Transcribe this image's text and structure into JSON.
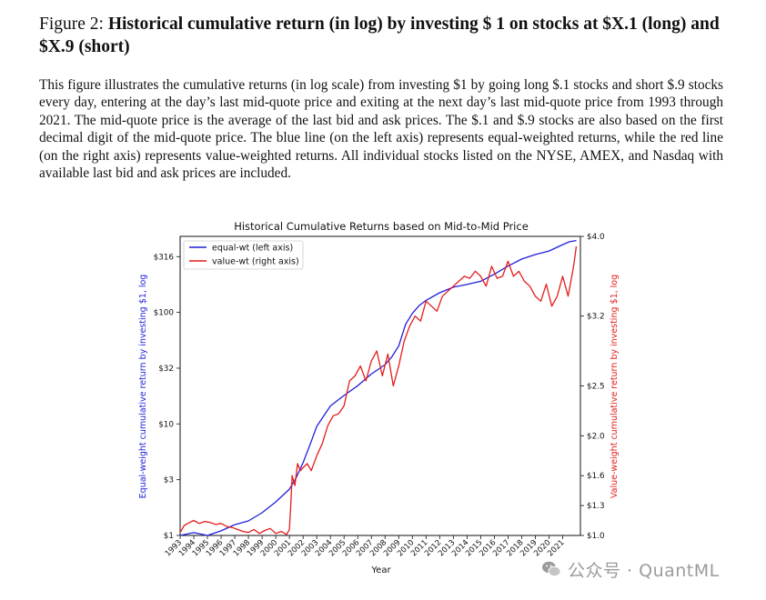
{
  "caption": {
    "label": "Figure 2:",
    "title": "Historical cumulative return (in log) by investing $ 1 on stocks at $X.1 (long) and $X.9 (short)",
    "body": "This figure illustrates the cumulative returns (in log scale) from investing $1 by going long $.1 stocks and short $.9 stocks every day, entering at the day’s last mid-quote price and exiting at the next day’s last mid-quote price from 1993 through 2021. The mid-quote price is the average of the last bid and ask prices. The $.1 and $.9 stocks are also based on the first decimal digit of the mid-quote price. The blue line (on the left axis) represents equal-weighted returns, while the red line (on the right axis) represents value-weighted returns. All individual stocks listed on the NYSE, AMEX, and Nasdaq with available last bid and ask prices are included."
  },
  "watermark": {
    "text": "公众号 · QuantML",
    "icon": "wechat-icon"
  },
  "chart_data": {
    "type": "line",
    "title": "Historical Cumulative Returns based on Mid-to-Mid Price",
    "xlabel": "Year",
    "ylabel_left": "Equal-weight cumulative return by investing $1, log",
    "ylabel_right": "Value-weight cumulative return by investing $1, log",
    "x_range": [
      1993,
      2022.3
    ],
    "x_ticks": [
      "1993",
      "1994",
      "1995",
      "1996",
      "1997",
      "1998",
      "1999",
      "2000",
      "2001",
      "2002",
      "2003",
      "2004",
      "2005",
      "2006",
      "2007",
      "2008",
      "2009",
      "2010",
      "2011",
      "2012",
      "2013",
      "2014",
      "2015",
      "2016",
      "2017",
      "2018",
      "2019",
      "2020",
      "2021"
    ],
    "left_axis": {
      "scale": "log",
      "range": [
        1,
        480
      ],
      "ticks": [
        1,
        3.16,
        10,
        31.6,
        100,
        316
      ],
      "tick_labels": [
        "$1",
        "$3",
        "$10",
        "$32",
        "$100",
        "$316"
      ],
      "color": "#1f1fdc"
    },
    "right_axis": {
      "scale": "linear",
      "range": [
        1.0,
        4.0
      ],
      "ticks": [
        1.0,
        1.3,
        1.6,
        2.0,
        2.5,
        3.2,
        4.0
      ],
      "tick_labels": [
        "$1.0",
        "$1.3",
        "$1.6",
        "$2.0",
        "$2.5",
        "$3.2",
        "$4.0"
      ],
      "color": "#e51c1c"
    },
    "legend": {
      "position": "top-left"
    },
    "grid": false,
    "series": [
      {
        "name": "equal-wt (left axis)",
        "axis": "left",
        "color": "#1f1fdc",
        "x": [
          1993.0,
          1994.0,
          1995.0,
          1996.0,
          1997.0,
          1998.0,
          1999.0,
          2000.0,
          2001.0,
          2001.5,
          2002.0,
          2002.5,
          2003.0,
          2004.0,
          2005.0,
          2006.0,
          2007.0,
          2008.0,
          2008.5,
          2009.0,
          2009.5,
          2010.0,
          2010.5,
          2011.0,
          2012.0,
          2013.0,
          2014.0,
          2015.0,
          2016.0,
          2017.0,
          2018.0,
          2019.0,
          2020.0,
          2021.0,
          2021.5,
          2022.0
        ],
        "y": [
          1.0,
          1.06,
          1.0,
          1.1,
          1.25,
          1.35,
          1.6,
          2.0,
          2.6,
          3.3,
          4.5,
          6.5,
          9.5,
          14.5,
          18,
          22,
          28,
          34,
          40,
          50,
          78,
          98,
          115,
          128,
          150,
          168,
          178,
          190,
          220,
          260,
          300,
          330,
          355,
          405,
          430,
          440
        ]
      },
      {
        "name": "value-wt (right axis)",
        "axis": "right",
        "color": "#e51c1c",
        "x": [
          1993.0,
          1993.3,
          1993.7,
          1994.0,
          1994.4,
          1994.8,
          1995.2,
          1995.6,
          1996.0,
          1996.4,
          1996.8,
          1997.2,
          1997.6,
          1998.0,
          1998.4,
          1998.8,
          1999.2,
          1999.6,
          2000.0,
          2000.4,
          2000.8,
          2001.0,
          2001.1,
          2001.2,
          2001.4,
          2001.6,
          2001.8,
          2002.0,
          2002.3,
          2002.6,
          2003.0,
          2003.4,
          2003.8,
          2004.2,
          2004.6,
          2005.0,
          2005.4,
          2005.8,
          2006.2,
          2006.6,
          2007.0,
          2007.4,
          2007.8,
          2008.2,
          2008.6,
          2009.0,
          2009.4,
          2009.8,
          2010.2,
          2010.6,
          2011.0,
          2011.4,
          2011.8,
          2012.2,
          2012.6,
          2013.0,
          2013.4,
          2013.8,
          2014.2,
          2014.6,
          2015.0,
          2015.4,
          2015.8,
          2016.2,
          2016.6,
          2017.0,
          2017.4,
          2017.8,
          2018.2,
          2018.6,
          2019.0,
          2019.4,
          2019.8,
          2020.2,
          2020.6,
          2021.0,
          2021.4,
          2021.8,
          2022.0
        ],
        "y": [
          1.03,
          1.1,
          1.13,
          1.15,
          1.12,
          1.14,
          1.13,
          1.11,
          1.12,
          1.09,
          1.08,
          1.06,
          1.04,
          1.03,
          1.06,
          1.02,
          1.05,
          1.07,
          1.02,
          1.04,
          1.01,
          1.06,
          1.3,
          1.6,
          1.5,
          1.72,
          1.65,
          1.68,
          1.72,
          1.65,
          1.8,
          1.92,
          2.1,
          2.2,
          2.22,
          2.3,
          2.55,
          2.6,
          2.7,
          2.55,
          2.75,
          2.85,
          2.6,
          2.82,
          2.5,
          2.7,
          2.95,
          3.1,
          3.2,
          3.15,
          3.35,
          3.3,
          3.25,
          3.4,
          3.45,
          3.5,
          3.55,
          3.6,
          3.58,
          3.65,
          3.6,
          3.5,
          3.7,
          3.58,
          3.6,
          3.75,
          3.6,
          3.65,
          3.55,
          3.5,
          3.4,
          3.35,
          3.52,
          3.3,
          3.4,
          3.6,
          3.4,
          3.7,
          3.9
        ]
      }
    ]
  }
}
